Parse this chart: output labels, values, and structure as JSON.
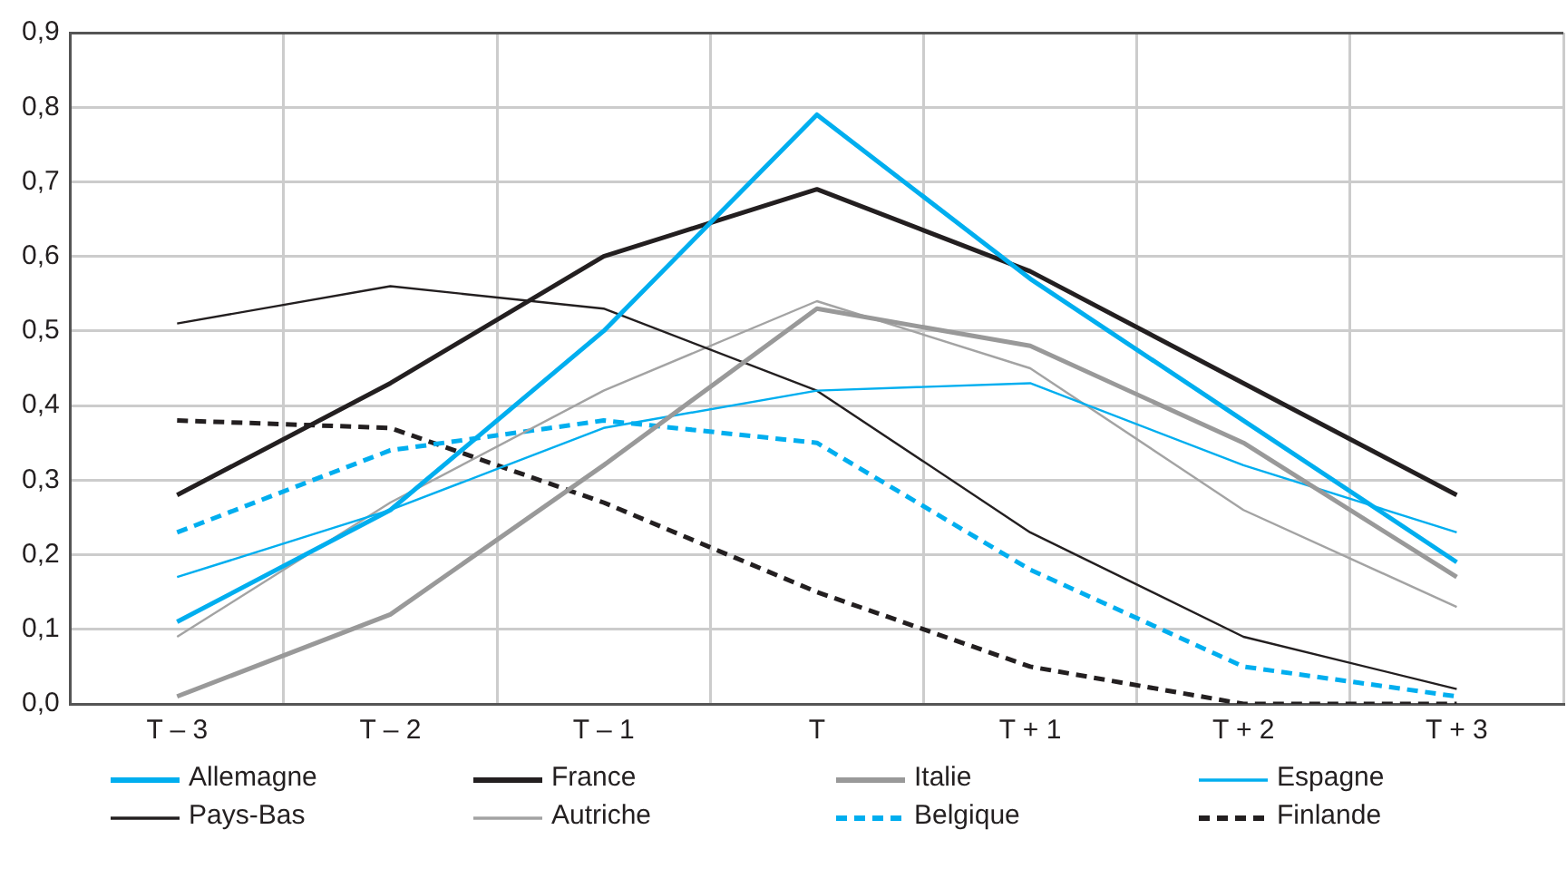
{
  "chart_data": {
    "type": "line",
    "categories": [
      "T – 3",
      "T – 2",
      "T – 1",
      "T",
      "T + 1",
      "T + 2",
      "T + 3"
    ],
    "ylim": [
      0,
      0.9
    ],
    "yticks": [
      {
        "value": 0,
        "label": "0,0"
      },
      {
        "value": 0.1,
        "label": "0,1"
      },
      {
        "value": 0.2,
        "label": "0,2"
      },
      {
        "value": 0.3,
        "label": "0,3"
      },
      {
        "value": 0.4,
        "label": "0,4"
      },
      {
        "value": 0.5,
        "label": "0,5"
      },
      {
        "value": 0.6,
        "label": "0,6"
      },
      {
        "value": 0.7,
        "label": "0,7"
      },
      {
        "value": 0.8,
        "label": "0,8"
      },
      {
        "value": 0.9,
        "label": "0,9"
      }
    ],
    "grid": true,
    "legend": "bottom",
    "marker": "none",
    "series": [
      {
        "name": "Allemagne",
        "color": "#00aeef",
        "values": [
          0.11,
          0.26,
          0.5,
          0.79,
          0.57,
          0.38,
          0.19
        ]
      },
      {
        "name": "France",
        "color": "#231f20",
        "values": [
          0.28,
          0.43,
          0.6,
          0.69,
          0.58,
          0.43,
          0.28
        ]
      },
      {
        "name": "Italie",
        "color": "#999999",
        "values": [
          0.01,
          0.12,
          0.32,
          0.53,
          0.48,
          0.35,
          0.17
        ]
      },
      {
        "name": "Espagne",
        "color": "#00aeef",
        "values": [
          0.17,
          0.26,
          0.37,
          0.42,
          0.43,
          0.32,
          0.23
        ]
      },
      {
        "name": "Pays-Bas",
        "color": "#231f20",
        "values": [
          0.51,
          0.56,
          0.53,
          0.42,
          0.23,
          0.09,
          0.02
        ]
      },
      {
        "name": "Autriche",
        "color": "#a3a3a3",
        "values": [
          0.09,
          0.27,
          0.42,
          0.54,
          0.45,
          0.26,
          0.13
        ]
      },
      {
        "name": "Belgique",
        "color": "#00aeef",
        "line_style": "dashed",
        "values": [
          0.23,
          0.34,
          0.38,
          0.35,
          0.18,
          0.05,
          0.01
        ]
      },
      {
        "name": "Finlande",
        "color": "#231f20",
        "line_style": "dashed",
        "values": [
          0.38,
          0.37,
          0.27,
          0.15,
          0.05,
          0.0,
          0.0
        ]
      }
    ]
  }
}
